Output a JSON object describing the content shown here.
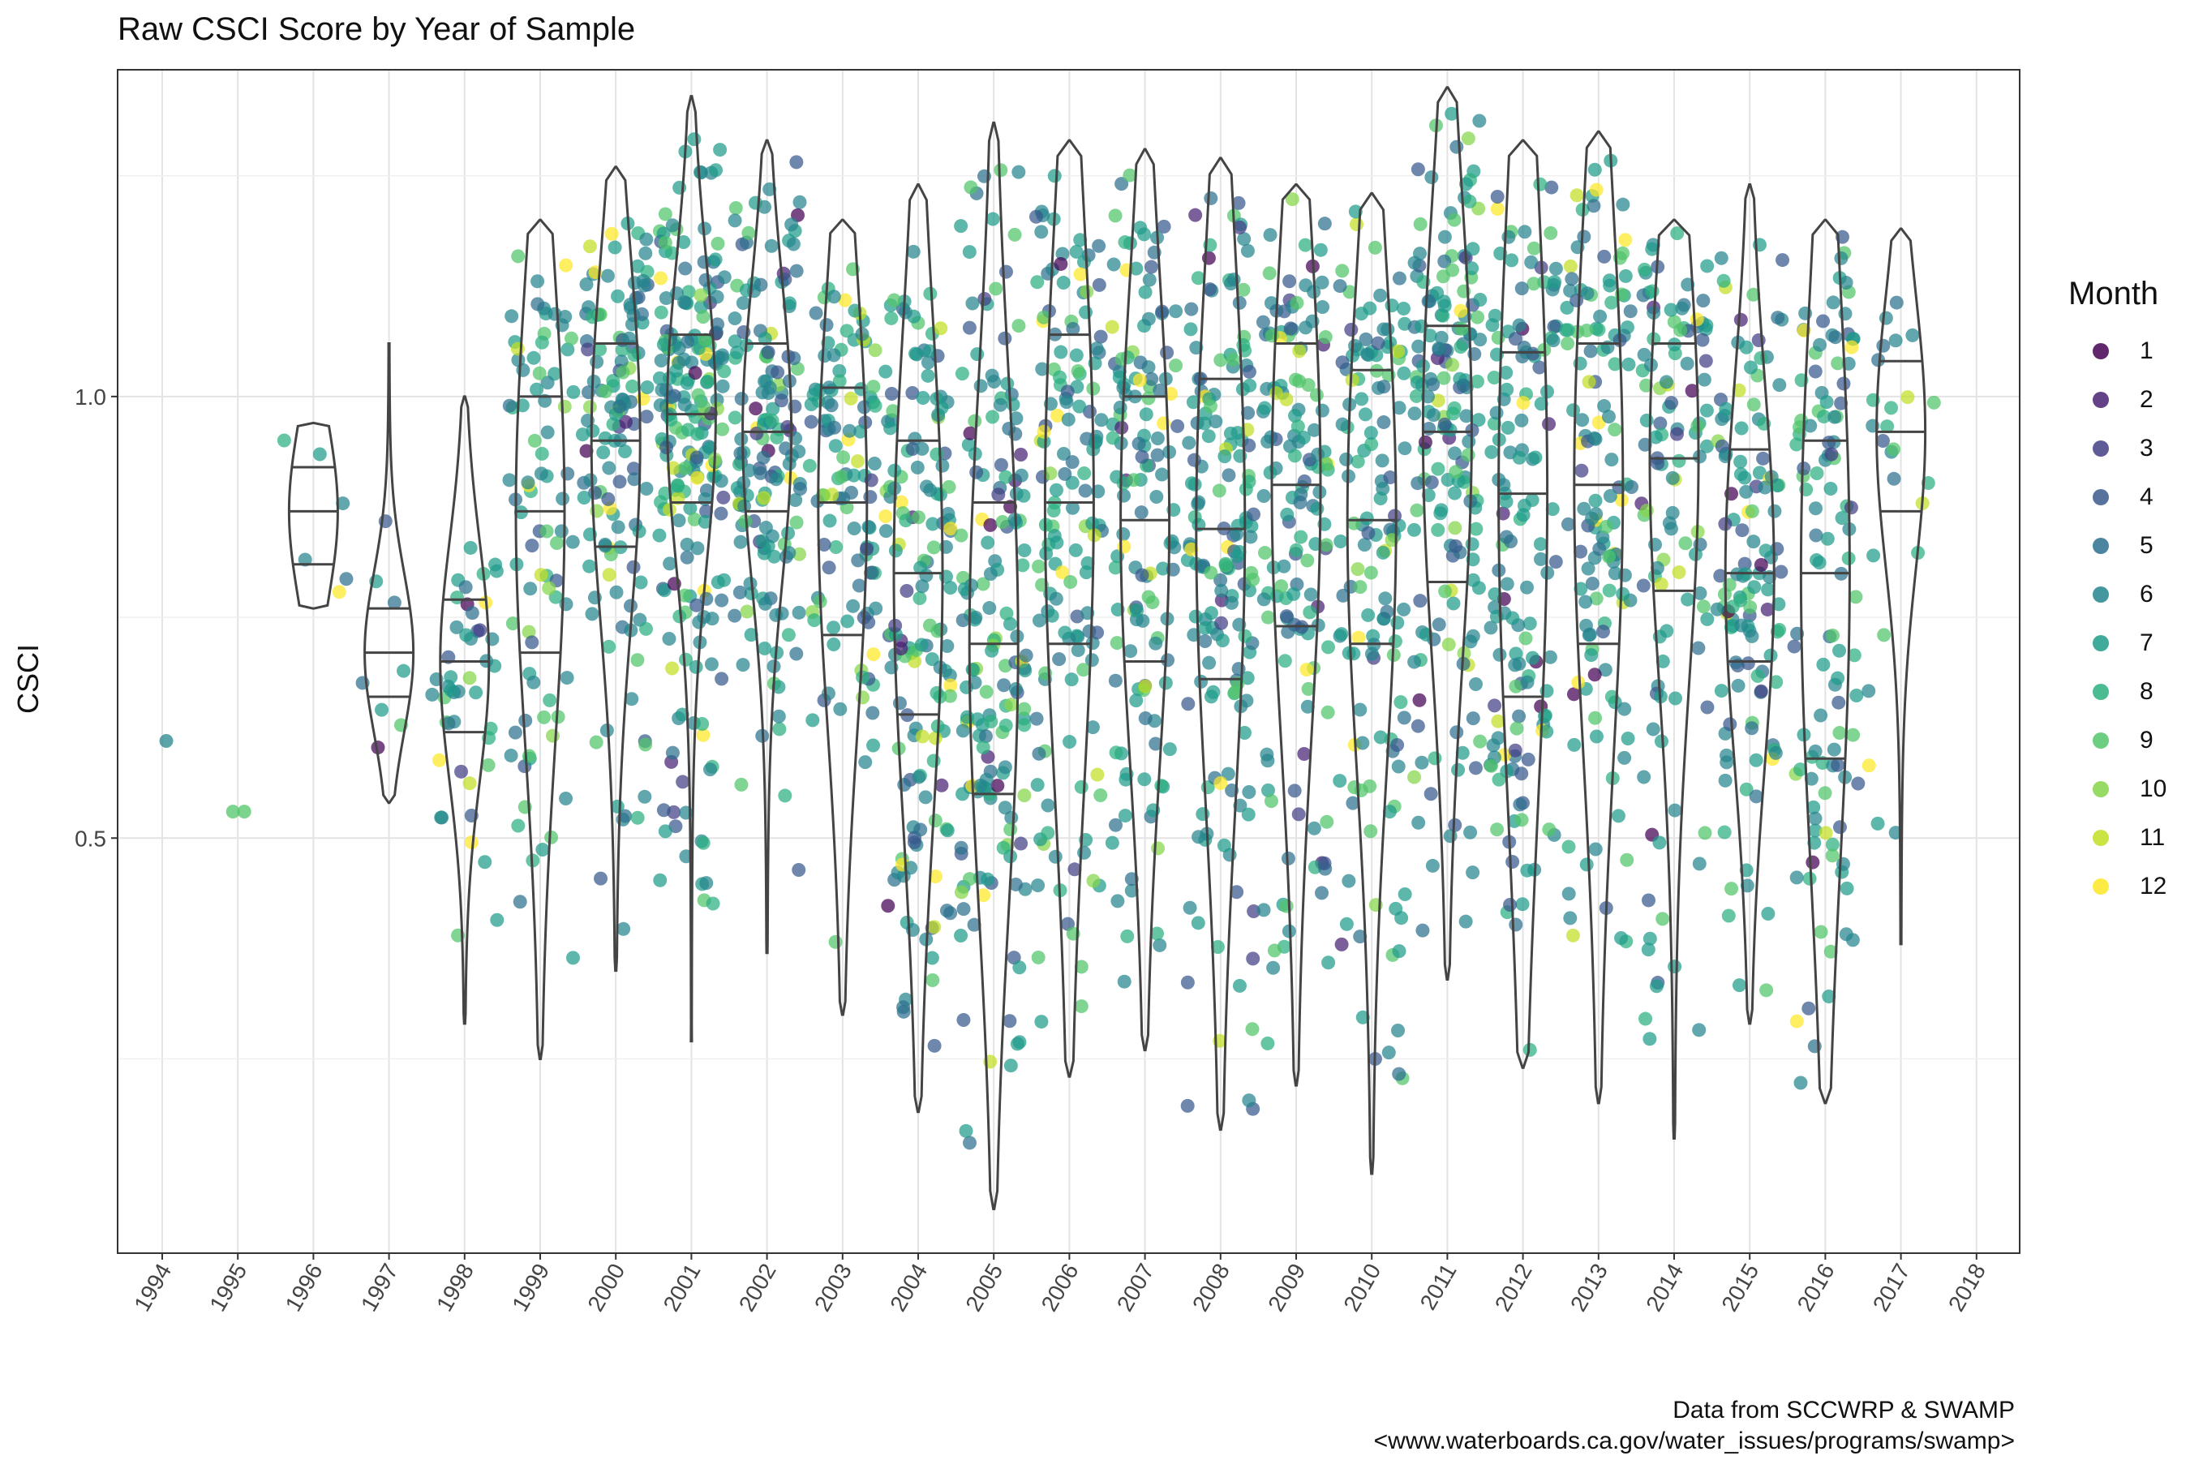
{
  "chart_data": {
    "type": "scatter",
    "title": "Raw CSCI Score by Year of Sample",
    "xlabel": "",
    "ylabel": "CSCI",
    "caption": [
      "Data from SCCWRP & SWAMP",
      "<www.waterboards.ca.gov/water_issues/programs/swamp>"
    ],
    "x_categories": [
      "1994",
      "1995",
      "1996",
      "1997",
      "1998",
      "1999",
      "2000",
      "2001",
      "2002",
      "2003",
      "2004",
      "2005",
      "2006",
      "2007",
      "2008",
      "2009",
      "2010",
      "2011",
      "2012",
      "2013",
      "2014",
      "2015",
      "2016",
      "2017",
      "2018"
    ],
    "y_ticks": [
      0.5,
      1.0
    ],
    "y_tick_labels": [
      "0.5",
      "1.0"
    ],
    "ylim": [
      0.03,
      1.37
    ],
    "grid": true,
    "legend": {
      "title": "Month",
      "position": "right",
      "items": [
        "1",
        "2",
        "3",
        "4",
        "5",
        "6",
        "7",
        "8",
        "9",
        "10",
        "11",
        "12"
      ],
      "colors": [
        "#440154",
        "#482173",
        "#433E85",
        "#38598C",
        "#2D708E",
        "#25858E",
        "#1E9B8A",
        "#2BB07F",
        "#51C56A",
        "#85D54A",
        "#C2DF23",
        "#FDE725"
      ]
    },
    "series_description": "jittered sample points by year, colored by month, with violin plots showing quantiles 0.25, 0.5, 0.75",
    "violins": [
      {
        "year": "1996",
        "min": 0.76,
        "max": 0.97,
        "q": [
          0.81,
          0.87,
          0.92
        ]
      },
      {
        "year": "1997",
        "min": 0.54,
        "max": 1.06,
        "q": [
          0.66,
          0.71,
          0.76
        ]
      },
      {
        "year": "1998",
        "min": 0.29,
        "max": 1.0,
        "q": [
          0.62,
          0.7,
          0.77
        ]
      },
      {
        "year": "1999",
        "min": 0.25,
        "max": 1.2,
        "q": [
          0.71,
          0.87,
          1.0
        ]
      },
      {
        "year": "2000",
        "min": 0.35,
        "max": 1.26,
        "q": [
          0.83,
          0.95,
          1.06
        ]
      },
      {
        "year": "2001",
        "min": 0.27,
        "max": 1.34,
        "q": [
          0.88,
          0.98,
          1.07
        ]
      },
      {
        "year": "2002",
        "min": 0.37,
        "max": 1.29,
        "q": [
          0.87,
          0.96,
          1.06
        ]
      },
      {
        "year": "2003",
        "min": 0.3,
        "max": 1.2,
        "q": [
          0.73,
          0.88,
          1.01
        ]
      },
      {
        "year": "2004",
        "min": 0.19,
        "max": 1.24,
        "q": [
          0.64,
          0.8,
          0.95
        ]
      },
      {
        "year": "2005",
        "min": 0.08,
        "max": 1.31,
        "q": [
          0.55,
          0.72,
          0.88
        ]
      },
      {
        "year": "2006",
        "min": 0.23,
        "max": 1.29,
        "q": [
          0.72,
          0.88,
          1.07
        ]
      },
      {
        "year": "2007",
        "min": 0.26,
        "max": 1.28,
        "q": [
          0.7,
          0.86,
          1.0
        ]
      },
      {
        "year": "2008",
        "min": 0.17,
        "max": 1.27,
        "q": [
          0.68,
          0.85,
          1.02
        ]
      },
      {
        "year": "2009",
        "min": 0.22,
        "max": 1.24,
        "q": [
          0.74,
          0.9,
          1.06
        ]
      },
      {
        "year": "2010",
        "min": 0.12,
        "max": 1.23,
        "q": [
          0.72,
          0.86,
          1.03
        ]
      },
      {
        "year": "2011",
        "min": 0.34,
        "max": 1.35,
        "q": [
          0.79,
          0.96,
          1.08
        ]
      },
      {
        "year": "2012",
        "min": 0.24,
        "max": 1.29,
        "q": [
          0.66,
          0.89,
          1.05
        ]
      },
      {
        "year": "2013",
        "min": 0.2,
        "max": 1.3,
        "q": [
          0.72,
          0.9,
          1.06
        ]
      },
      {
        "year": "2014",
        "min": 0.16,
        "max": 1.2,
        "q": [
          0.78,
          0.93,
          1.06
        ]
      },
      {
        "year": "2015",
        "min": 0.29,
        "max": 1.24,
        "q": [
          0.7,
          0.8,
          0.94
        ]
      },
      {
        "year": "2016",
        "min": 0.2,
        "max": 1.2,
        "q": [
          0.59,
          0.8,
          0.95
        ]
      },
      {
        "year": "2017",
        "min": 0.38,
        "max": 1.19,
        "q": [
          0.87,
          0.96,
          1.04
        ]
      }
    ],
    "isolated_points": [
      {
        "year": "1994",
        "y": 0.61,
        "month": 6
      },
      {
        "year": "1995",
        "y": 0.53,
        "month": 9
      },
      {
        "year": "1995",
        "y": 0.53,
        "month": 9
      }
    ]
  }
}
